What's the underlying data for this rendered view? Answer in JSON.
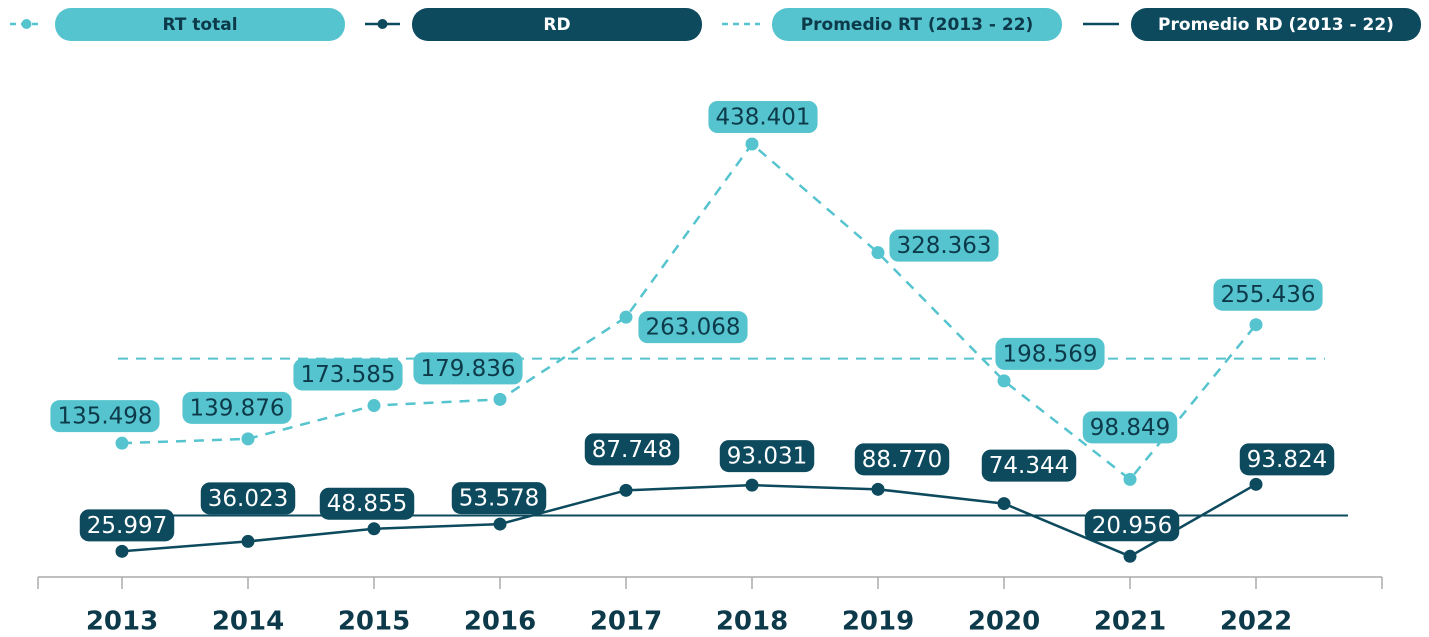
{
  "chart_data": {
    "type": "line",
    "categories": [
      "2013",
      "2014",
      "2015",
      "2016",
      "2017",
      "2018",
      "2019",
      "2020",
      "2021",
      "2022"
    ],
    "series": [
      {
        "name": "RT total",
        "color": "#56c4cf",
        "dash": true,
        "values": [
          135498,
          139876,
          173585,
          179836,
          263068,
          438401,
          328363,
          198569,
          98849,
          255436
        ],
        "value_labels": [
          "135.498",
          "139.876",
          "173.585",
          "179.836",
          "263.068",
          "438.401",
          "328.363",
          "198.569",
          "98.849",
          "255.436"
        ]
      },
      {
        "name": "RD",
        "color": "#0d4a5e",
        "dash": false,
        "values": [
          25997,
          36023,
          48855,
          53578,
          87748,
          93031,
          88770,
          74344,
          20956,
          93824
        ],
        "value_labels": [
          "25.997",
          "36.023",
          "48.855",
          "53.578",
          "87.748",
          "93.031",
          "88.770",
          "74.344",
          "20.956",
          "93.824"
        ]
      }
    ],
    "averages": [
      {
        "name": "Promedio RT (2013 - 22)",
        "color": "#56c4cf",
        "dash": true,
        "value": 221148
      },
      {
        "name": "Promedio RD (2013 - 22)",
        "color": "#0d4a5e",
        "dash": false,
        "value": 62313
      }
    ]
  }
}
